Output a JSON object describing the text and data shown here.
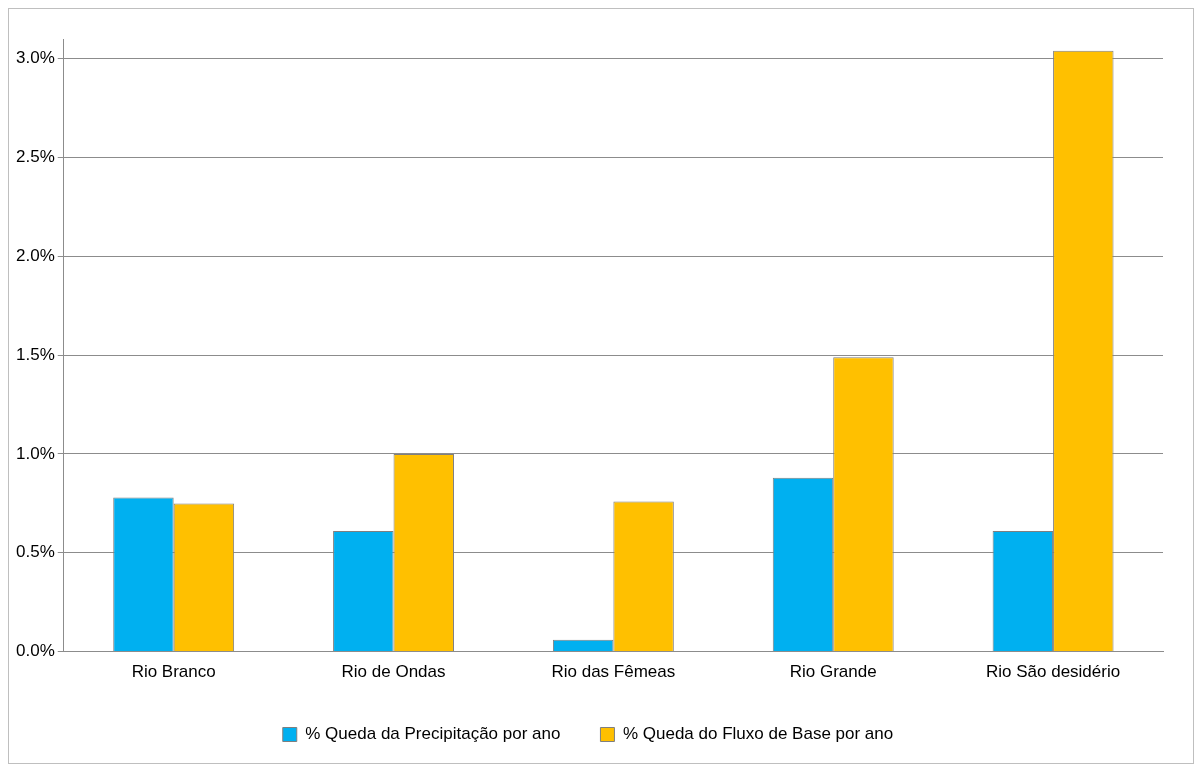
{
  "chart_data": {
    "type": "bar",
    "categories": [
      "Rio Branco",
      "Rio de Ondas",
      "Rio das Fêmeas",
      "Rio Grande",
      "Rio São desidério"
    ],
    "series": [
      {
        "name": "% Queda da Precipitação por ano",
        "color": "#00b0f0",
        "values": [
          0.78,
          0.61,
          0.06,
          0.88,
          0.61
        ]
      },
      {
        "name": "% Queda do Fluxo de Base por ano",
        "color": "#ffc000",
        "values": [
          0.75,
          1.0,
          0.76,
          1.49,
          3.04
        ]
      }
    ],
    "ylim": [
      0,
      3.1
    ],
    "yticks": [
      {
        "value": 0,
        "label": "0.0%"
      },
      {
        "value": 0.5,
        "label": "0.5%"
      },
      {
        "value": 1,
        "label": "1.0%"
      },
      {
        "value": 1.5,
        "label": "1.5%"
      },
      {
        "value": 2,
        "label": "2.0%"
      },
      {
        "value": 2.5,
        "label": "2.5%"
      },
      {
        "value": 3,
        "label": "3.0%"
      }
    ],
    "grid": "y",
    "legend": "bottom"
  }
}
